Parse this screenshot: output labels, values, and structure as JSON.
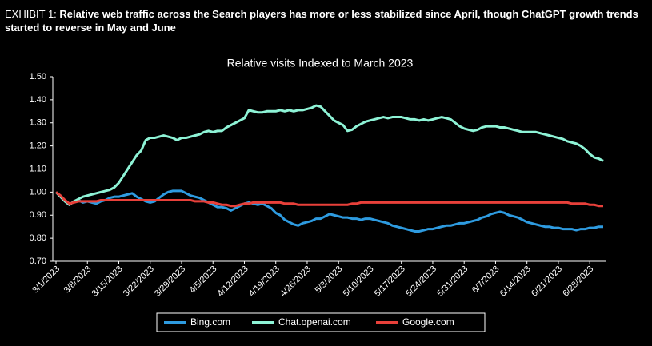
{
  "header": {
    "label": "EXHIBIT 1:",
    "title": "Relative web traffic across the Search players has more or less stabilized since April, though ChatGPT growth trends started to reverse in May and June"
  },
  "chart_data": {
    "type": "line",
    "title": "Relative visits Indexed to March 2023",
    "categories": [
      "3/1/2023",
      null,
      null,
      null,
      null,
      null,
      null,
      "3/8/2023",
      null,
      null,
      null,
      null,
      null,
      null,
      "3/15/2023",
      null,
      null,
      null,
      null,
      null,
      null,
      "3/22/2023",
      null,
      null,
      null,
      null,
      null,
      null,
      "3/29/2023",
      null,
      null,
      null,
      null,
      null,
      null,
      "4/5/2023",
      null,
      null,
      null,
      null,
      null,
      null,
      "4/12/2023",
      null,
      null,
      null,
      null,
      null,
      null,
      "4/19/2023",
      null,
      null,
      null,
      null,
      null,
      null,
      "4/26/2023",
      null,
      null,
      null,
      null,
      null,
      null,
      "5/3/2023",
      null,
      null,
      null,
      null,
      null,
      null,
      "5/10/2023",
      null,
      null,
      null,
      null,
      null,
      null,
      "5/17/2023",
      null,
      null,
      null,
      null,
      null,
      null,
      "5/24/2023",
      null,
      null,
      null,
      null,
      null,
      null,
      "5/31/2023",
      null,
      null,
      null,
      null,
      null,
      null,
      "6/7/2023",
      null,
      null,
      null,
      null,
      null,
      null,
      "6/14/2023",
      null,
      null,
      null,
      null,
      null,
      null,
      "6/21/2023",
      null,
      null,
      null,
      null,
      null,
      null,
      "6/28/2023",
      null,
      null,
      null
    ],
    "series": [
      {
        "name": "Bing.com",
        "color": "#2e9be0",
        "values": [
          1.0,
          0.98,
          0.96,
          0.945,
          0.96,
          0.965,
          0.955,
          0.96,
          0.955,
          0.95,
          0.96,
          0.965,
          0.975,
          0.98,
          0.98,
          0.985,
          0.99,
          0.995,
          0.98,
          0.97,
          0.96,
          0.955,
          0.96,
          0.975,
          0.99,
          1.0,
          1.005,
          1.005,
          1.005,
          0.995,
          0.985,
          0.98,
          0.975,
          0.965,
          0.955,
          0.945,
          0.935,
          0.935,
          0.93,
          0.92,
          0.93,
          0.94,
          0.95,
          0.955,
          0.95,
          0.945,
          0.95,
          0.94,
          0.93,
          0.91,
          0.9,
          0.88,
          0.87,
          0.86,
          0.855,
          0.865,
          0.87,
          0.875,
          0.885,
          0.885,
          0.895,
          0.905,
          0.9,
          0.895,
          0.89,
          0.89,
          0.885,
          0.885,
          0.88,
          0.885,
          0.885,
          0.88,
          0.875,
          0.87,
          0.865,
          0.855,
          0.85,
          0.845,
          0.84,
          0.835,
          0.83,
          0.83,
          0.835,
          0.84,
          0.84,
          0.845,
          0.85,
          0.855,
          0.855,
          0.86,
          0.865,
          0.865,
          0.87,
          0.875,
          0.88,
          0.89,
          0.895,
          0.905,
          0.91,
          0.915,
          0.91,
          0.9,
          0.895,
          0.89,
          0.88,
          0.87,
          0.865,
          0.86,
          0.855,
          0.85,
          0.85,
          0.845,
          0.845,
          0.84,
          0.84,
          0.84,
          0.835,
          0.84,
          0.84,
          0.845,
          0.845,
          0.85,
          0.85
        ]
      },
      {
        "name": "Chat.openai.com",
        "color": "#8ef3d6",
        "values": [
          1.0,
          0.98,
          0.96,
          0.945,
          0.96,
          0.97,
          0.98,
          0.985,
          0.99,
          0.995,
          1.0,
          1.005,
          1.01,
          1.02,
          1.04,
          1.07,
          1.1,
          1.13,
          1.16,
          1.18,
          1.225,
          1.235,
          1.235,
          1.24,
          1.245,
          1.24,
          1.235,
          1.225,
          1.235,
          1.235,
          1.24,
          1.245,
          1.25,
          1.26,
          1.265,
          1.26,
          1.265,
          1.265,
          1.28,
          1.29,
          1.3,
          1.31,
          1.32,
          1.355,
          1.35,
          1.345,
          1.345,
          1.35,
          1.35,
          1.35,
          1.355,
          1.35,
          1.355,
          1.35,
          1.355,
          1.355,
          1.36,
          1.365,
          1.375,
          1.37,
          1.35,
          1.33,
          1.31,
          1.3,
          1.29,
          1.265,
          1.27,
          1.285,
          1.295,
          1.305,
          1.31,
          1.315,
          1.32,
          1.325,
          1.32,
          1.325,
          1.325,
          1.325,
          1.32,
          1.315,
          1.315,
          1.31,
          1.315,
          1.31,
          1.315,
          1.32,
          1.325,
          1.32,
          1.315,
          1.3,
          1.285,
          1.275,
          1.27,
          1.265,
          1.27,
          1.28,
          1.285,
          1.285,
          1.285,
          1.28,
          1.28,
          1.275,
          1.27,
          1.265,
          1.26,
          1.26,
          1.26,
          1.26,
          1.255,
          1.25,
          1.245,
          1.24,
          1.235,
          1.23,
          1.22,
          1.215,
          1.21,
          1.2,
          1.185,
          1.165,
          1.15,
          1.145,
          1.135
        ]
      },
      {
        "name": "Google.com",
        "color": "#e8403a",
        "values": [
          1.0,
          0.985,
          0.965,
          0.95,
          0.955,
          0.96,
          0.96,
          0.96,
          0.96,
          0.96,
          0.965,
          0.965,
          0.965,
          0.965,
          0.965,
          0.965,
          0.965,
          0.965,
          0.965,
          0.965,
          0.965,
          0.965,
          0.965,
          0.965,
          0.965,
          0.965,
          0.965,
          0.965,
          0.965,
          0.965,
          0.965,
          0.96,
          0.96,
          0.96,
          0.955,
          0.955,
          0.95,
          0.945,
          0.945,
          0.94,
          0.94,
          0.945,
          0.95,
          0.95,
          0.955,
          0.955,
          0.955,
          0.955,
          0.955,
          0.955,
          0.955,
          0.95,
          0.95,
          0.95,
          0.945,
          0.945,
          0.945,
          0.945,
          0.945,
          0.945,
          0.945,
          0.945,
          0.945,
          0.945,
          0.945,
          0.945,
          0.95,
          0.95,
          0.955,
          0.955,
          0.955,
          0.955,
          0.955,
          0.955,
          0.955,
          0.955,
          0.955,
          0.955,
          0.955,
          0.955,
          0.955,
          0.955,
          0.955,
          0.955,
          0.955,
          0.955,
          0.955,
          0.955,
          0.955,
          0.955,
          0.955,
          0.955,
          0.955,
          0.955,
          0.955,
          0.955,
          0.955,
          0.955,
          0.955,
          0.955,
          0.955,
          0.955,
          0.955,
          0.955,
          0.955,
          0.955,
          0.955,
          0.955,
          0.955,
          0.955,
          0.955,
          0.955,
          0.955,
          0.955,
          0.955,
          0.95,
          0.95,
          0.95,
          0.95,
          0.945,
          0.945,
          0.94,
          0.94
        ]
      }
    ],
    "ylim": [
      0.7,
      1.5
    ],
    "yticks": [
      {
        "value": 0.7,
        "label": "0.70"
      },
      {
        "value": 0.8,
        "label": "0.80"
      },
      {
        "value": 0.9,
        "label": "0.90"
      },
      {
        "value": 1.0,
        "label": "1.00"
      },
      {
        "value": 1.1,
        "label": "1.10"
      },
      {
        "value": 1.2,
        "label": "1.20"
      },
      {
        "value": 1.3,
        "label": "1.30"
      },
      {
        "value": 1.4,
        "label": "1.40"
      },
      {
        "value": 1.5,
        "label": "1.50"
      }
    ],
    "legend": "bottom"
  }
}
